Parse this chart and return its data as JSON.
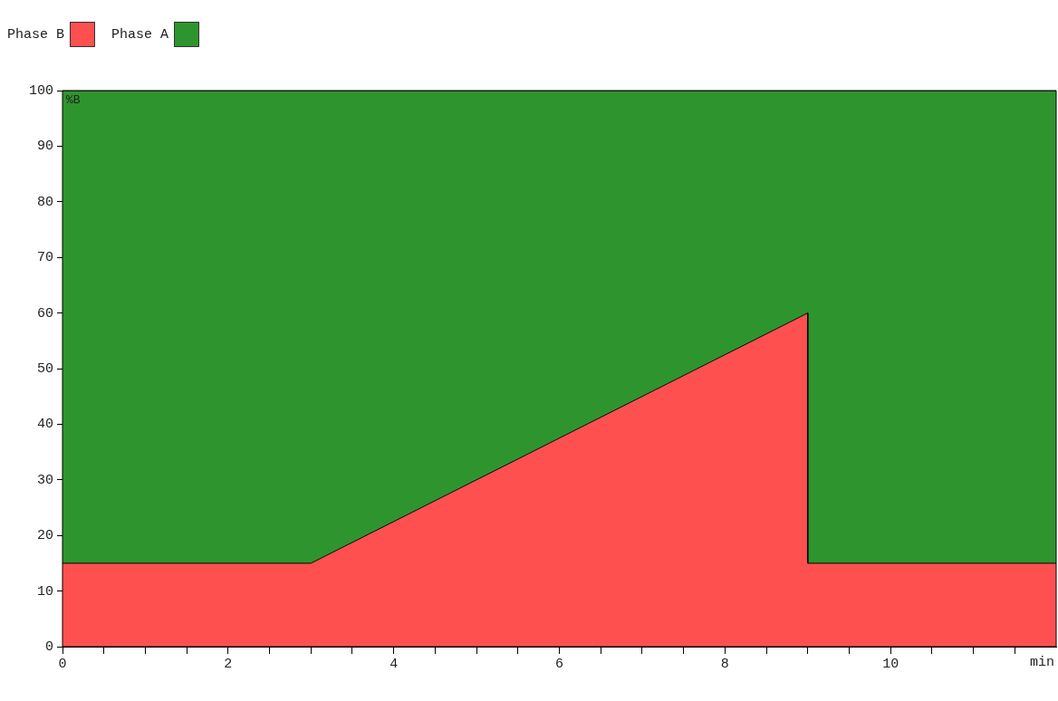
{
  "chart_data": {
    "type": "area",
    "stacked": true,
    "xlabel": "min",
    "ylabel": "%B",
    "legend": "top left",
    "xlim": [
      0,
      12
    ],
    "ylim": [
      0,
      100
    ],
    "xticks": [
      0,
      {
        "value": 0.5,
        "label": null
      },
      {
        "value": 1,
        "label": null
      },
      {
        "value": 1.5,
        "label": null
      },
      2,
      {
        "value": 2.5,
        "label": null
      },
      {
        "value": 3,
        "label": null
      },
      {
        "value": 3.5,
        "label": null
      },
      4,
      {
        "value": 4.5,
        "label": null
      },
      {
        "value": 5,
        "label": null
      },
      {
        "value": 5.5,
        "label": null
      },
      6,
      {
        "value": 6.5,
        "label": null
      },
      {
        "value": 7,
        "label": null
      },
      {
        "value": 7.5,
        "label": null
      },
      8,
      {
        "value": 8.5,
        "label": null
      },
      {
        "value": 9,
        "label": null
      },
      {
        "value": 9.5,
        "label": null
      },
      10,
      {
        "value": 10.5,
        "label": null
      },
      {
        "value": 11,
        "label": null
      },
      {
        "value": 11.5,
        "label": null
      }
    ],
    "yticks": [
      0,
      10,
      20,
      30,
      40,
      50,
      60,
      70,
      80,
      90,
      100
    ],
    "series": [
      {
        "name": "Phase B",
        "color": "#ff5050",
        "x": [
          0,
          3,
          9,
          9,
          12
        ],
        "values": [
          15,
          15,
          60,
          15,
          15
        ]
      },
      {
        "name": "Phase A",
        "color": "#2e952e",
        "x": [
          0,
          3,
          9,
          9,
          12
        ],
        "values": [
          85,
          85,
          40,
          85,
          85
        ]
      }
    ]
  }
}
